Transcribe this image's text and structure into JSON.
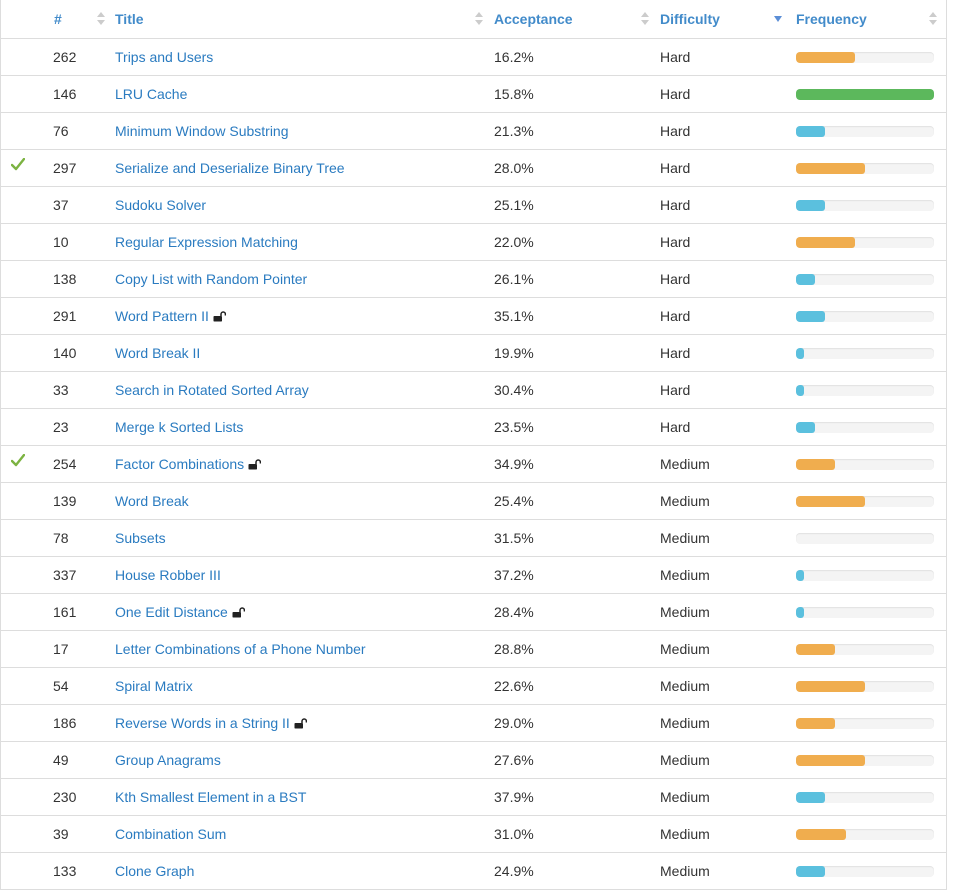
{
  "header": {
    "id_label": "#",
    "title_label": "Title",
    "acceptance_label": "Acceptance",
    "difficulty_label": "Difficulty",
    "frequency_label": "Frequency"
  },
  "colors": {
    "link": "#2a7bc0",
    "header": "#428bca",
    "check": "#7cb342",
    "bar_orange": "#f0ad4e",
    "bar_green": "#5cb85c",
    "bar_blue": "#5bc0de"
  },
  "rows": [
    {
      "solved": false,
      "id": "262",
      "title": "Trips and Users",
      "locked": false,
      "acceptance": "16.2%",
      "difficulty": "Hard",
      "frequency": 0.43,
      "freq_color": "orange"
    },
    {
      "solved": false,
      "id": "146",
      "title": "LRU Cache",
      "locked": false,
      "acceptance": "15.8%",
      "difficulty": "Hard",
      "frequency": 1.0,
      "freq_color": "green"
    },
    {
      "solved": false,
      "id": "76",
      "title": "Minimum Window Substring",
      "locked": false,
      "acceptance": "21.3%",
      "difficulty": "Hard",
      "frequency": 0.21,
      "freq_color": "blue"
    },
    {
      "solved": true,
      "id": "297",
      "title": "Serialize and Deserialize Binary Tree",
      "locked": false,
      "acceptance": "28.0%",
      "difficulty": "Hard",
      "frequency": 0.5,
      "freq_color": "orange"
    },
    {
      "solved": false,
      "id": "37",
      "title": "Sudoku Solver",
      "locked": false,
      "acceptance": "25.1%",
      "difficulty": "Hard",
      "frequency": 0.21,
      "freq_color": "blue"
    },
    {
      "solved": false,
      "id": "10",
      "title": "Regular Expression Matching",
      "locked": false,
      "acceptance": "22.0%",
      "difficulty": "Hard",
      "frequency": 0.43,
      "freq_color": "orange"
    },
    {
      "solved": false,
      "id": "138",
      "title": "Copy List with Random Pointer",
      "locked": false,
      "acceptance": "26.1%",
      "difficulty": "Hard",
      "frequency": 0.14,
      "freq_color": "blue"
    },
    {
      "solved": false,
      "id": "291",
      "title": "Word Pattern II",
      "locked": true,
      "acceptance": "35.1%",
      "difficulty": "Hard",
      "frequency": 0.21,
      "freq_color": "blue"
    },
    {
      "solved": false,
      "id": "140",
      "title": "Word Break II",
      "locked": false,
      "acceptance": "19.9%",
      "difficulty": "Hard",
      "frequency": 0.06,
      "freq_color": "blue"
    },
    {
      "solved": false,
      "id": "33",
      "title": "Search in Rotated Sorted Array",
      "locked": false,
      "acceptance": "30.4%",
      "difficulty": "Hard",
      "frequency": 0.06,
      "freq_color": "blue"
    },
    {
      "solved": false,
      "id": "23",
      "title": "Merge k Sorted Lists",
      "locked": false,
      "acceptance": "23.5%",
      "difficulty": "Hard",
      "frequency": 0.14,
      "freq_color": "blue"
    },
    {
      "solved": true,
      "id": "254",
      "title": "Factor Combinations",
      "locked": true,
      "acceptance": "34.9%",
      "difficulty": "Medium",
      "frequency": 0.28,
      "freq_color": "orange"
    },
    {
      "solved": false,
      "id": "139",
      "title": "Word Break",
      "locked": false,
      "acceptance": "25.4%",
      "difficulty": "Medium",
      "frequency": 0.5,
      "freq_color": "orange"
    },
    {
      "solved": false,
      "id": "78",
      "title": "Subsets",
      "locked": false,
      "acceptance": "31.5%",
      "difficulty": "Medium",
      "frequency": 0.0,
      "freq_color": "blue"
    },
    {
      "solved": false,
      "id": "337",
      "title": "House Robber III",
      "locked": false,
      "acceptance": "37.2%",
      "difficulty": "Medium",
      "frequency": 0.06,
      "freq_color": "blue"
    },
    {
      "solved": false,
      "id": "161",
      "title": "One Edit Distance",
      "locked": true,
      "acceptance": "28.4%",
      "difficulty": "Medium",
      "frequency": 0.06,
      "freq_color": "blue"
    },
    {
      "solved": false,
      "id": "17",
      "title": "Letter Combinations of a Phone Number",
      "locked": false,
      "acceptance": "28.8%",
      "difficulty": "Medium",
      "frequency": 0.28,
      "freq_color": "orange"
    },
    {
      "solved": false,
      "id": "54",
      "title": "Spiral Matrix",
      "locked": false,
      "acceptance": "22.6%",
      "difficulty": "Medium",
      "frequency": 0.5,
      "freq_color": "orange"
    },
    {
      "solved": false,
      "id": "186",
      "title": "Reverse Words in a String II",
      "locked": true,
      "acceptance": "29.0%",
      "difficulty": "Medium",
      "frequency": 0.28,
      "freq_color": "orange"
    },
    {
      "solved": false,
      "id": "49",
      "title": "Group Anagrams",
      "locked": false,
      "acceptance": "27.6%",
      "difficulty": "Medium",
      "frequency": 0.5,
      "freq_color": "orange"
    },
    {
      "solved": false,
      "id": "230",
      "title": "Kth Smallest Element in a BST",
      "locked": false,
      "acceptance": "37.9%",
      "difficulty": "Medium",
      "frequency": 0.21,
      "freq_color": "blue"
    },
    {
      "solved": false,
      "id": "39",
      "title": "Combination Sum",
      "locked": false,
      "acceptance": "31.0%",
      "difficulty": "Medium",
      "frequency": 0.36,
      "freq_color": "orange"
    },
    {
      "solved": false,
      "id": "133",
      "title": "Clone Graph",
      "locked": false,
      "acceptance": "24.9%",
      "difficulty": "Medium",
      "frequency": 0.21,
      "freq_color": "blue"
    }
  ]
}
